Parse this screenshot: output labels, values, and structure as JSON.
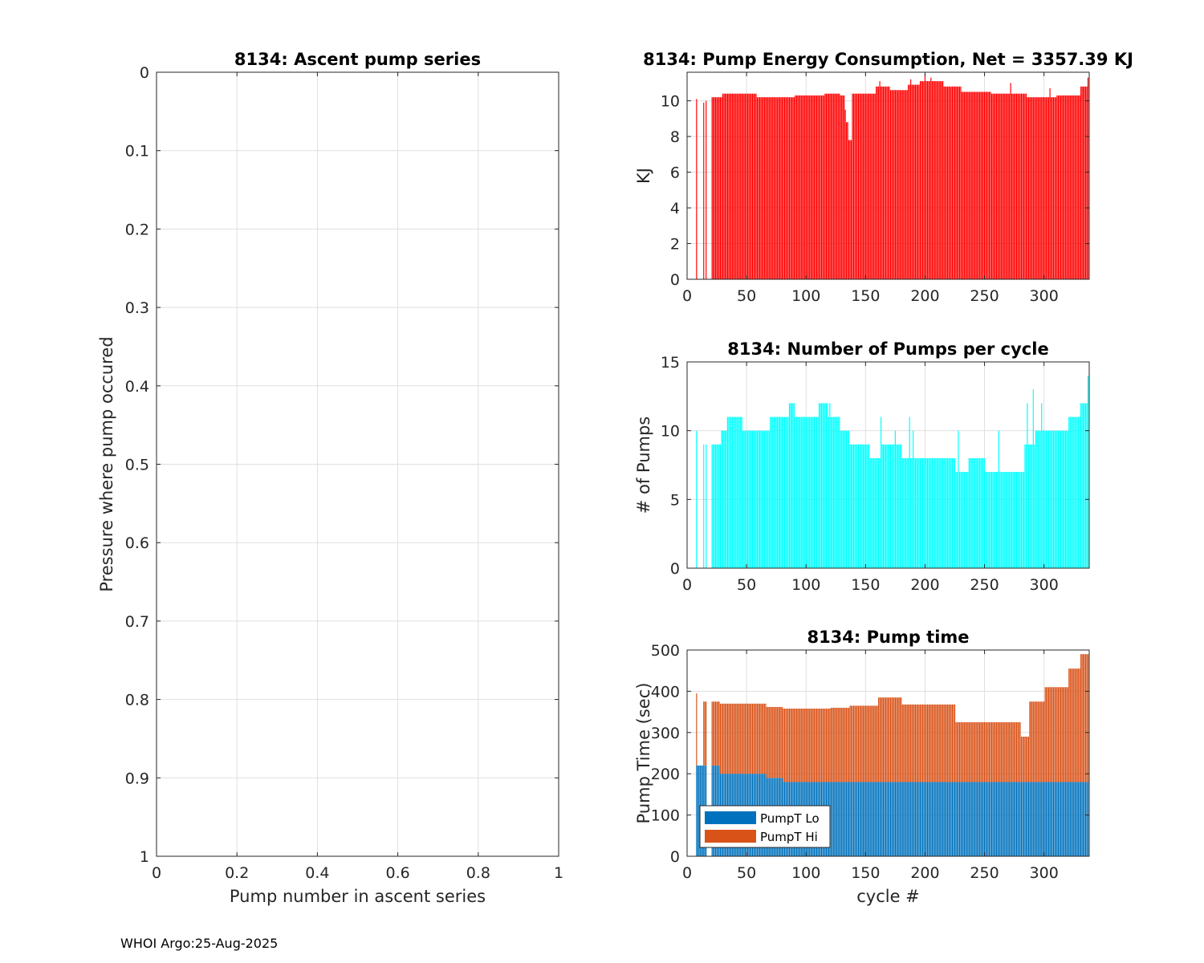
{
  "footer": "WHOI Argo:25-Aug-2025",
  "chart_data": [
    {
      "id": "ascent",
      "type": "scatter",
      "title": "8134: Ascent pump series",
      "xlabel": "Pump number in ascent series",
      "ylabel": "Pressure where pump occured",
      "xlim": [
        0,
        1
      ],
      "ylim": [
        0,
        1
      ],
      "y_reversed": true,
      "xticks": [
        0,
        0.2,
        0.4,
        0.6,
        0.8,
        1
      ],
      "xtick_labels": [
        "0",
        "0.2",
        "0.4",
        "0.6",
        "0.8",
        "1"
      ],
      "yticks": [
        0,
        0.1,
        0.2,
        0.3,
        0.4,
        0.5,
        0.6,
        0.7,
        0.8,
        0.9,
        1
      ],
      "ytick_labels": [
        "0",
        "0.1",
        "0.2",
        "0.3",
        "0.4",
        "0.5",
        "0.6",
        "0.7",
        "0.8",
        "0.9",
        "1"
      ],
      "grid": true,
      "series": []
    },
    {
      "id": "energy",
      "type": "bar",
      "title": "8134: Pump Energy Consumption,  Net = 3357.39 KJ",
      "xlabel": "",
      "ylabel": "KJ",
      "xlim": [
        0,
        338
      ],
      "ylim": [
        0,
        11.6
      ],
      "xticks": [
        0,
        50,
        100,
        150,
        200,
        250,
        300
      ],
      "xtick_labels": [
        "0",
        "50",
        "100",
        "150",
        "200",
        "250",
        "300"
      ],
      "yticks": [
        0,
        2,
        4,
        6,
        8,
        10
      ],
      "ytick_labels": [
        "0",
        "2",
        "4",
        "6",
        "8",
        "10"
      ],
      "grid": true,
      "color": "#ff0000",
      "segments": [
        {
          "from": 8,
          "to": 8,
          "value": 10.1
        },
        {
          "from": 14,
          "to": 14,
          "value": 9.9
        },
        {
          "from": 16,
          "to": 16,
          "value": 10.0
        },
        {
          "from": 21,
          "to": 29,
          "value": 10.2
        },
        {
          "from": 30,
          "to": 58,
          "value": 10.4
        },
        {
          "from": 59,
          "to": 90,
          "value": 10.2
        },
        {
          "from": 91,
          "to": 115,
          "value": 10.3
        },
        {
          "from": 116,
          "to": 128,
          "value": 10.4
        },
        {
          "from": 129,
          "to": 132,
          "value": 10.3
        },
        {
          "from": 133,
          "to": 133,
          "value": 9.5
        },
        {
          "from": 134,
          "to": 135,
          "value": 8.8
        },
        {
          "from": 136,
          "to": 138,
          "value": 7.8
        },
        {
          "from": 139,
          "to": 158,
          "value": 10.4
        },
        {
          "from": 159,
          "to": 170,
          "value": 10.8
        },
        {
          "from": 171,
          "to": 185,
          "value": 10.6
        },
        {
          "from": 186,
          "to": 195,
          "value": 10.9
        },
        {
          "from": 196,
          "to": 215,
          "value": 11.1
        },
        {
          "from": 216,
          "to": 230,
          "value": 10.8
        },
        {
          "from": 231,
          "to": 255,
          "value": 10.5
        },
        {
          "from": 256,
          "to": 285,
          "value": 10.4
        },
        {
          "from": 286,
          "to": 310,
          "value": 10.2
        },
        {
          "from": 311,
          "to": 330,
          "value": 10.3
        },
        {
          "from": 331,
          "to": 337,
          "value": 10.8
        }
      ],
      "spikes": [
        {
          "x": 162,
          "value": 11.1
        },
        {
          "x": 188,
          "value": 11.2
        },
        {
          "x": 200,
          "value": 11.5
        },
        {
          "x": 205,
          "value": 11.3
        },
        {
          "x": 272,
          "value": 11.0
        },
        {
          "x": 305,
          "value": 10.7
        },
        {
          "x": 337,
          "value": 11.3
        }
      ]
    },
    {
      "id": "pumps",
      "type": "bar",
      "title": "8134: Number of Pumps per cycle",
      "xlabel": "",
      "ylabel": "# of Pumps",
      "xlim": [
        0,
        338
      ],
      "ylim": [
        0,
        15
      ],
      "xticks": [
        0,
        50,
        100,
        150,
        200,
        250,
        300
      ],
      "xtick_labels": [
        "0",
        "50",
        "100",
        "150",
        "200",
        "250",
        "300"
      ],
      "yticks": [
        0,
        5,
        10,
        15
      ],
      "ytick_labels": [
        "0",
        "5",
        "10",
        "15"
      ],
      "grid": true,
      "color": "#00ffff",
      "segments": [
        {
          "from": 8,
          "to": 8,
          "value": 10
        },
        {
          "from": 14,
          "to": 14,
          "value": 9
        },
        {
          "from": 16,
          "to": 16,
          "value": 9
        },
        {
          "from": 21,
          "to": 28,
          "value": 9
        },
        {
          "from": 29,
          "to": 33,
          "value": 10
        },
        {
          "from": 34,
          "to": 46,
          "value": 11
        },
        {
          "from": 47,
          "to": 69,
          "value": 10
        },
        {
          "from": 70,
          "to": 85,
          "value": 11
        },
        {
          "from": 86,
          "to": 90,
          "value": 12
        },
        {
          "from": 91,
          "to": 110,
          "value": 11
        },
        {
          "from": 111,
          "to": 118,
          "value": 12
        },
        {
          "from": 119,
          "to": 128,
          "value": 11
        },
        {
          "from": 129,
          "to": 136,
          "value": 10
        },
        {
          "from": 137,
          "to": 153,
          "value": 9
        },
        {
          "from": 154,
          "to": 163,
          "value": 8
        },
        {
          "from": 164,
          "to": 180,
          "value": 9
        },
        {
          "from": 181,
          "to": 200,
          "value": 8
        },
        {
          "from": 201,
          "to": 225,
          "value": 8
        },
        {
          "from": 226,
          "to": 236,
          "value": 7
        },
        {
          "from": 237,
          "to": 250,
          "value": 8
        },
        {
          "from": 251,
          "to": 283,
          "value": 7
        },
        {
          "from": 284,
          "to": 292,
          "value": 9
        },
        {
          "from": 293,
          "to": 305,
          "value": 10
        },
        {
          "from": 306,
          "to": 320,
          "value": 10
        },
        {
          "from": 321,
          "to": 330,
          "value": 11
        },
        {
          "from": 331,
          "to": 337,
          "value": 12
        }
      ],
      "spikes": [
        {
          "x": 120,
          "value": 12
        },
        {
          "x": 163,
          "value": 11
        },
        {
          "x": 175,
          "value": 10
        },
        {
          "x": 187,
          "value": 11
        },
        {
          "x": 190,
          "value": 10
        },
        {
          "x": 228,
          "value": 10
        },
        {
          "x": 262,
          "value": 10
        },
        {
          "x": 286,
          "value": 12
        },
        {
          "x": 291,
          "value": 13
        },
        {
          "x": 298,
          "value": 12
        },
        {
          "x": 337,
          "value": 14
        }
      ]
    },
    {
      "id": "pumptime",
      "type": "bar",
      "stacked": true,
      "title": "8134: Pump time",
      "xlabel": "cycle #",
      "ylabel": "Pump Time (sec)",
      "xlim": [
        0,
        338
      ],
      "ylim": [
        0,
        500
      ],
      "xticks": [
        0,
        50,
        100,
        150,
        200,
        250,
        300
      ],
      "xtick_labels": [
        "0",
        "50",
        "100",
        "150",
        "200",
        "250",
        "300"
      ],
      "yticks": [
        0,
        100,
        200,
        300,
        400,
        500
      ],
      "ytick_labels": [
        "0",
        "100",
        "200",
        "300",
        "400",
        "500"
      ],
      "grid": true,
      "legend_position": "bottom-left",
      "series": [
        {
          "name": "PumpT Lo",
          "color": "#0072bd",
          "segments": [
            {
              "from": 8,
              "to": 16,
              "value": 220
            },
            {
              "from": 21,
              "to": 27,
              "value": 220
            },
            {
              "from": 28,
              "to": 66,
              "value": 200
            },
            {
              "from": 67,
              "to": 80,
              "value": 190
            },
            {
              "from": 81,
              "to": 337,
              "value": 180
            }
          ]
        },
        {
          "name": "PumpT Hi",
          "color": "#d95319",
          "segments": [
            {
              "from": 8,
              "to": 8,
              "value": 175
            },
            {
              "from": 14,
              "to": 16,
              "value": 155
            },
            {
              "from": 21,
              "to": 27,
              "value": 155
            },
            {
              "from": 28,
              "to": 66,
              "value": 170
            },
            {
              "from": 67,
              "to": 80,
              "value": 172
            },
            {
              "from": 81,
              "to": 120,
              "value": 178
            },
            {
              "from": 121,
              "to": 136,
              "value": 180
            },
            {
              "from": 137,
              "to": 160,
              "value": 185
            },
            {
              "from": 161,
              "to": 180,
              "value": 205
            },
            {
              "from": 181,
              "to": 225,
              "value": 188
            },
            {
              "from": 226,
              "to": 250,
              "value": 145
            },
            {
              "from": 251,
              "to": 280,
              "value": 145
            },
            {
              "from": 281,
              "to": 287,
              "value": 110
            },
            {
              "from": 288,
              "to": 300,
              "value": 195
            },
            {
              "from": 301,
              "to": 320,
              "value": 230
            },
            {
              "from": 321,
              "to": 330,
              "value": 275
            },
            {
              "from": 331,
              "to": 337,
              "value": 310
            }
          ]
        }
      ],
      "legend": [
        "PumpT Lo",
        "PumpT Hi"
      ]
    }
  ]
}
